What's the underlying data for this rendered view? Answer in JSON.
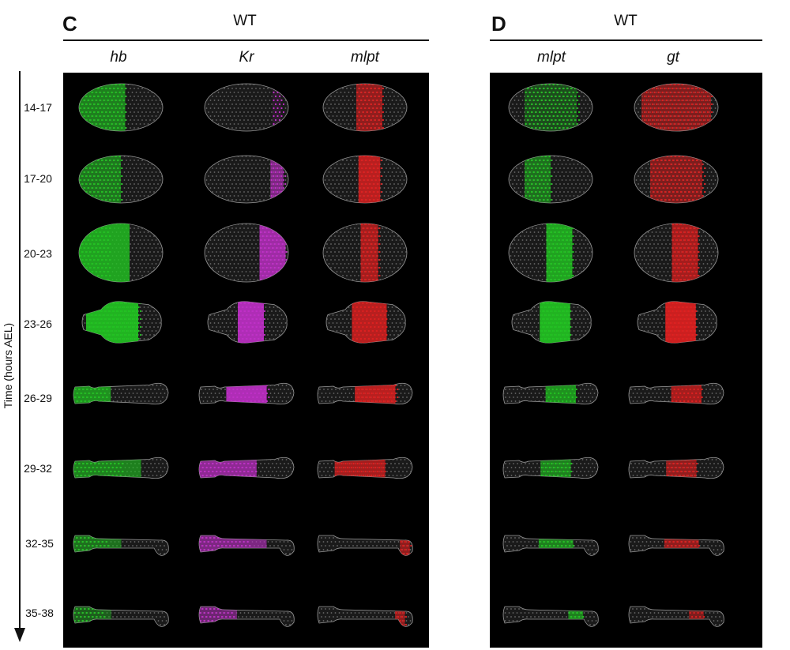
{
  "panel_c": {
    "letter": "C",
    "condition": "WT",
    "genes": [
      "hb",
      "Kr",
      "mlpt"
    ],
    "gene_colors": [
      "#22c522",
      "#c030c8",
      "#e02020"
    ]
  },
  "panel_d": {
    "letter": "D",
    "condition": "WT",
    "genes": [
      "mlpt",
      "gt"
    ],
    "gene_colors": [
      "#22c522",
      "#e02020"
    ]
  },
  "y_axis": {
    "title": "Time (hours AEL)",
    "time_points": [
      "14-17",
      "17-20",
      "20-23",
      "23-26",
      "26-29",
      "29-32",
      "32-35",
      "35-38"
    ]
  }
}
